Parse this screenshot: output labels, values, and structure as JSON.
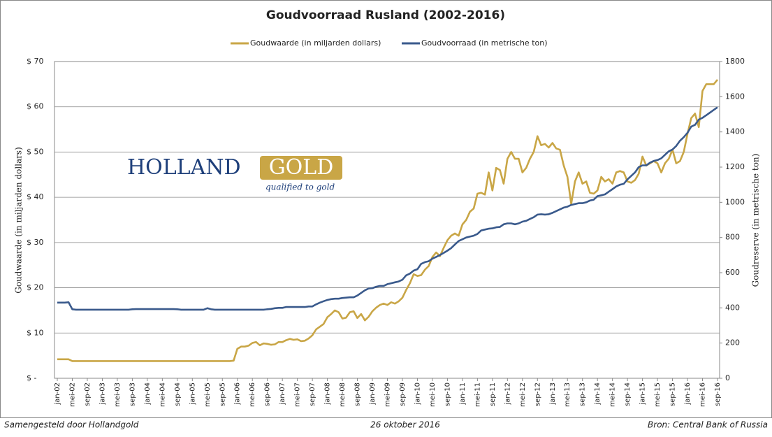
{
  "chart_data": {
    "type": "line",
    "title": "Goudvoorraad Rusland (2002-2016)",
    "y_label": "Goudwaarde  (in miljarden dollars)",
    "y2_label": "Goudreserve  (in metrische ton)",
    "grid": true,
    "legend": "top",
    "categories": [
      "jan-02",
      null,
      null,
      null,
      "mei-02",
      null,
      null,
      null,
      "sep-02",
      null,
      null,
      null,
      "jan-03",
      null,
      null,
      null,
      "mei-03",
      null,
      null,
      null,
      "sep-03",
      null,
      null,
      null,
      "jan-04",
      null,
      null,
      null,
      "mei-04",
      null,
      null,
      null,
      "sep-04",
      null,
      null,
      null,
      "jan-05",
      null,
      null,
      null,
      "mei-05",
      null,
      null,
      null,
      "sep-05",
      null,
      null,
      null,
      "jan-06",
      null,
      null,
      null,
      "mei-06",
      null,
      null,
      null,
      "sep-06",
      null,
      null,
      null,
      "jan-07",
      null,
      null,
      null,
      "mei-07",
      null,
      null,
      null,
      "sep-07",
      null,
      null,
      null,
      "jan-08",
      null,
      null,
      null,
      "mei-08",
      null,
      null,
      null,
      "sep-08",
      null,
      null,
      null,
      "jan-09",
      null,
      null,
      null,
      "mei-09",
      null,
      null,
      null,
      "sep-09",
      null,
      null,
      null,
      "jan-10",
      null,
      null,
      null,
      "mei-10",
      null,
      null,
      null,
      "sep-10",
      null,
      null,
      null,
      "jan-11",
      null,
      null,
      null,
      "mei-11",
      null,
      null,
      null,
      "sep-11",
      null,
      null,
      null,
      "jan-12",
      null,
      null,
      null,
      "mei-12",
      null,
      null,
      null,
      "sep-12",
      null,
      null,
      null,
      "jan-13",
      null,
      null,
      null,
      "mei-13",
      null,
      null,
      null,
      "sep-13",
      null,
      null,
      null,
      "jan-14",
      null,
      null,
      null,
      "mei-14",
      null,
      null,
      null,
      "sep-14",
      null,
      null,
      null,
      "jan-15",
      null,
      null,
      null,
      "mei-15",
      null,
      null,
      null,
      "sep-15",
      null,
      null,
      null,
      "jan-16",
      null,
      null,
      null,
      "mei-16",
      null,
      null,
      null,
      "sep-16"
    ],
    "ylim": [
      0,
      70
    ],
    "yticks": [
      {
        "value": 0,
        "label": "$ -"
      },
      {
        "value": 10,
        "label": "$ 10"
      },
      {
        "value": 20,
        "label": "$ 20"
      },
      {
        "value": 30,
        "label": "$ 30"
      },
      {
        "value": 40,
        "label": "$ 40"
      },
      {
        "value": 50,
        "label": "$ 50"
      },
      {
        "value": 60,
        "label": "$ 60"
      },
      {
        "value": 70,
        "label": "$ 70"
      }
    ],
    "y2lim": [
      0,
      1800
    ],
    "y2ticks": [
      0,
      200,
      400,
      600,
      800,
      1000,
      1200,
      1400,
      1600,
      1800
    ],
    "series": [
      {
        "name": "Goudwaarde (in miljarden dollars)",
        "color": "#c9a646",
        "axis": "y",
        "values": [
          4.2,
          4.2,
          4.2,
          4.2,
          3.8,
          3.8,
          3.8,
          3.8,
          3.8,
          3.8,
          3.8,
          3.8,
          3.8,
          3.8,
          3.8,
          3.8,
          3.8,
          3.8,
          3.8,
          3.8,
          3.8,
          3.8,
          3.8,
          3.8,
          3.8,
          3.8,
          3.8,
          3.8,
          3.8,
          3.8,
          3.8,
          3.8,
          3.8,
          3.8,
          3.8,
          3.8,
          3.8,
          3.8,
          3.8,
          3.8,
          3.8,
          3.8,
          3.8,
          3.8,
          3.8,
          3.8,
          3.8,
          3.9,
          6.5,
          7.0,
          7.0,
          7.2,
          7.8,
          8.0,
          7.3,
          7.7,
          7.6,
          7.4,
          7.5,
          8.0,
          8.0,
          8.4,
          8.7,
          8.5,
          8.6,
          8.2,
          8.3,
          8.8,
          9.5,
          10.8,
          11.4,
          12.0,
          13.5,
          14.2,
          15.0,
          14.6,
          13.2,
          13.4,
          14.6,
          14.8,
          13.3,
          14.2,
          12.8,
          13.6,
          14.8,
          15.6,
          16.2,
          16.5,
          16.2,
          16.8,
          16.5,
          17.0,
          17.8,
          19.5,
          21.0,
          23.0,
          22.6,
          22.8,
          24.0,
          24.8,
          26.8,
          27.8,
          27.0,
          28.8,
          30.5,
          31.5,
          32.0,
          31.5,
          34.0,
          35.0,
          36.8,
          37.5,
          40.8,
          41.0,
          40.6,
          45.5,
          41.5,
          46.5,
          46.0,
          43.0,
          48.5,
          50.0,
          48.5,
          48.5,
          45.5,
          46.5,
          48.5,
          50.0,
          53.5,
          51.5,
          51.8,
          51.0,
          52.0,
          50.8,
          50.5,
          47.0,
          44.5,
          38.5,
          43.5,
          45.5,
          43.0,
          43.5,
          41.0,
          40.8,
          41.5,
          44.5,
          43.5,
          44.0,
          43.0,
          45.5,
          45.8,
          45.5,
          43.5,
          43.2,
          43.8,
          45.2,
          49.0,
          47.0,
          47.5,
          48.0,
          47.5,
          45.5,
          47.5,
          48.5,
          50.5,
          47.5,
          48.0,
          50.0,
          54.0,
          57.5,
          58.5,
          55.5,
          63.5,
          65.0,
          65.0,
          65.0,
          66.0
        ]
      },
      {
        "name": "Goudvoorraad (in metrische ton)",
        "color": "#3a5a8c",
        "axis": "y2",
        "values": [
          430,
          430,
          430,
          432,
          392,
          390,
          390,
          390,
          390,
          390,
          390,
          390,
          390,
          390,
          390,
          390,
          390,
          390,
          390,
          390,
          392,
          393,
          393,
          393,
          393,
          393,
          393,
          393,
          393,
          393,
          393,
          393,
          392,
          390,
          390,
          390,
          390,
          390,
          390,
          390,
          398,
          392,
          390,
          390,
          390,
          390,
          390,
          390,
          390,
          390,
          390,
          390,
          390,
          390,
          390,
          390,
          392,
          394,
          398,
          400,
          400,
          405,
          405,
          405,
          405,
          405,
          405,
          408,
          408,
          420,
          430,
          438,
          445,
          450,
          452,
          452,
          456,
          458,
          460,
          460,
          470,
          485,
          500,
          510,
          512,
          520,
          525,
          525,
          535,
          540,
          545,
          550,
          560,
          585,
          595,
          612,
          620,
          650,
          660,
          665,
          680,
          690,
          700,
          712,
          725,
          740,
          760,
          780,
          790,
          800,
          805,
          810,
          820,
          840,
          845,
          850,
          852,
          858,
          860,
          875,
          880,
          880,
          875,
          880,
          890,
          895,
          905,
          915,
          930,
          932,
          930,
          932,
          940,
          950,
          960,
          970,
          975,
          985,
          990,
          995,
          995,
          1000,
          1010,
          1015,
          1035,
          1040,
          1045,
          1060,
          1075,
          1090,
          1100,
          1105,
          1130,
          1150,
          1170,
          1200,
          1210,
          1210,
          1225,
          1235,
          1240,
          1250,
          1270,
          1290,
          1300,
          1320,
          1350,
          1370,
          1395,
          1430,
          1440,
          1470,
          1480,
          1495,
          1510,
          1525,
          1540
        ]
      }
    ]
  },
  "logo": {
    "word1": "HOLLAND",
    "word2": "GOLD",
    "tagline": "qualified to gold"
  },
  "footer": {
    "left": "Samengesteld door Hollandgold",
    "center": "26 oktober 2016",
    "right": "Bron: Central Bank of Russia"
  }
}
